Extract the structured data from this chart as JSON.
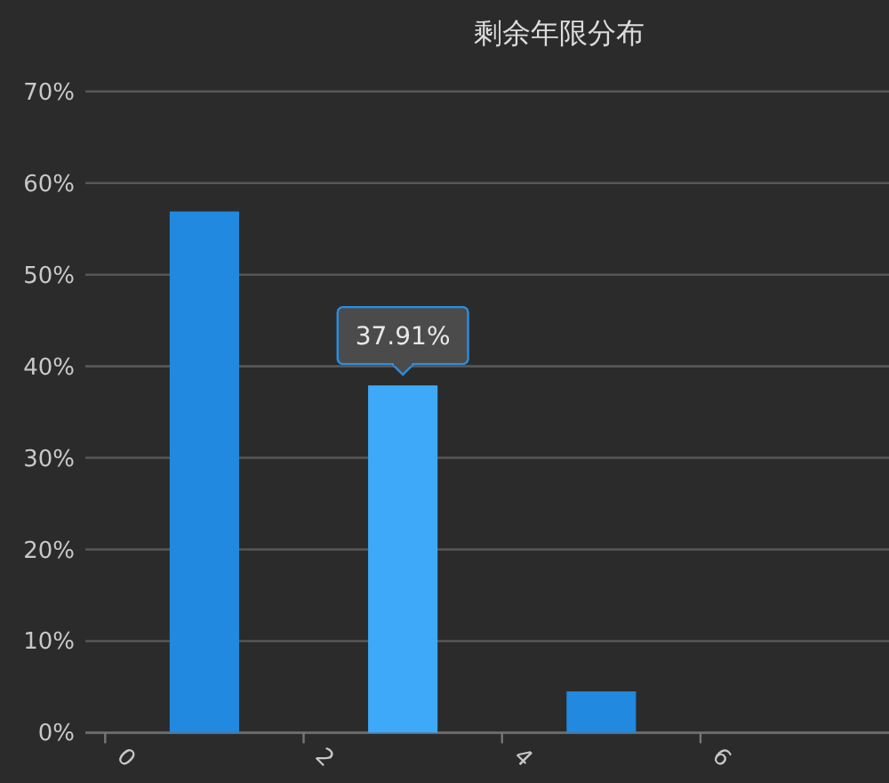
{
  "chart_data": {
    "type": "bar",
    "title": "剩余年限分布",
    "x": [
      1,
      3,
      5
    ],
    "values": [
      56.9,
      37.91,
      4.5
    ],
    "colors": [
      "#2189e0",
      "#3da9f8",
      "#2189e0"
    ],
    "xlim": [
      -0.2,
      7.9
    ],
    "xticks": [
      0,
      2,
      4,
      6
    ],
    "ylim": [
      0,
      70
    ],
    "yticks": [
      {
        "value": 0,
        "label": "0%"
      },
      {
        "value": 10,
        "label": "10%"
      },
      {
        "value": 20,
        "label": "20%"
      },
      {
        "value": 30,
        "label": "30%"
      },
      {
        "value": 40,
        "label": "40%"
      },
      {
        "value": 50,
        "label": "50%"
      },
      {
        "value": 60,
        "label": "60%"
      },
      {
        "value": 70,
        "label": "70%"
      }
    ],
    "grid": "y",
    "annotations": [
      {
        "text": "37.91%",
        "x": 3,
        "y": 37.91
      }
    ]
  }
}
